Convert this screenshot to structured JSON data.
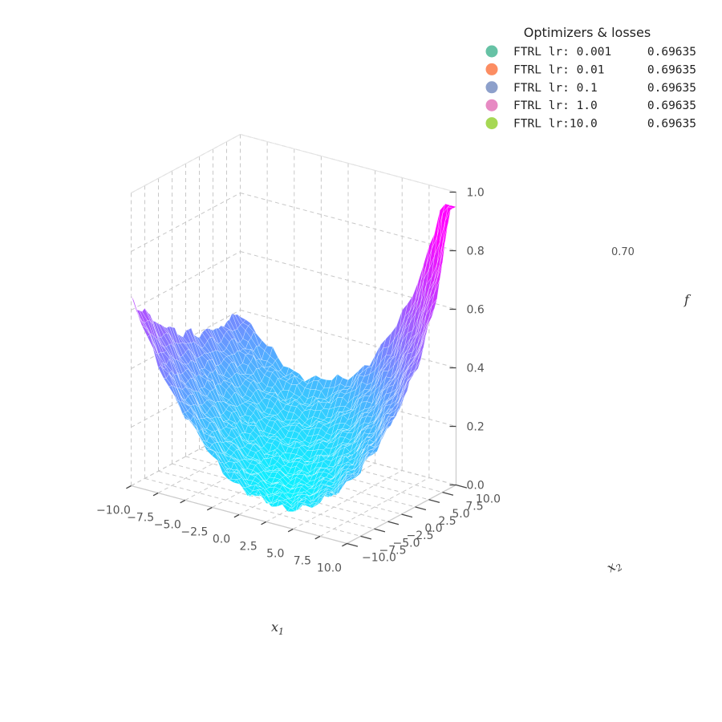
{
  "chart_data": {
    "type": "surface",
    "x_axis": {
      "label": "x",
      "label_sub": "1",
      "ticks": [
        "−10.0",
        "−7.5",
        "−5.0",
        "−2.5",
        "0.0",
        "2.5",
        "5.0",
        "7.5",
        "10.0"
      ],
      "range": [
        -10,
        10
      ]
    },
    "y_axis": {
      "label": "x",
      "label_sub": "2",
      "ticks": [
        "−10.0",
        "−7.5",
        "−5.0",
        "−2.5",
        "0.0",
        "2.5",
        "5.0",
        "7.5",
        "10.0"
      ],
      "range": [
        -10,
        10
      ]
    },
    "z_axis": {
      "label": "f",
      "ticks": [
        "0.0",
        "0.2",
        "0.4",
        "0.6",
        "0.8",
        "1.0"
      ],
      "range": [
        0,
        1
      ]
    },
    "grid": true,
    "colormap": [
      "#00ffff",
      "#ff00ff"
    ],
    "contour_label": "0.70",
    "legend": {
      "title": "Optimizers & losses",
      "placement": "top-right",
      "entries": [
        {
          "name": "FTRL lr: 0.001",
          "loss": "0.69635",
          "color": "#66c2a5"
        },
        {
          "name": "FTRL lr: 0.01",
          "loss": "0.69635",
          "color": "#fc8d62"
        },
        {
          "name": "FTRL lr: 0.1",
          "loss": "0.69635",
          "color": "#8da0cb"
        },
        {
          "name": "FTRL lr: 1.0",
          "loss": "0.69635",
          "color": "#e78ac3"
        },
        {
          "name": "FTRL lr:10.0",
          "loss": "0.69635",
          "color": "#a6d854"
        }
      ]
    }
  }
}
